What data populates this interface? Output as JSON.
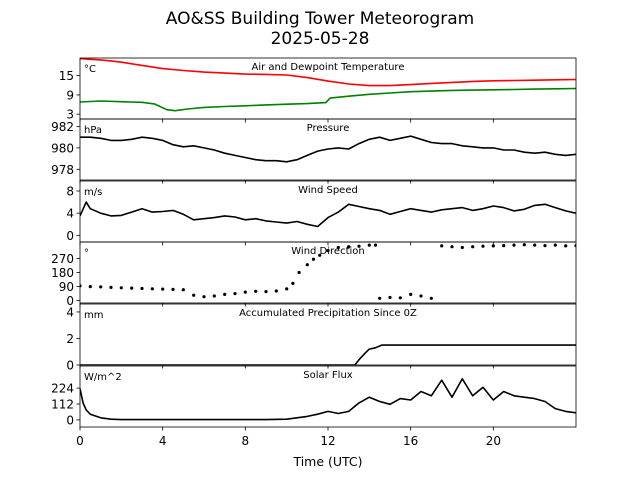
{
  "figure": {
    "title_line1": "AO&SS Building Tower Meteorogram",
    "title_line2": "2025-05-28",
    "xlabel": "Time (UTC)"
  },
  "chart_data": [
    {
      "type": "line",
      "title": "Air and Dewpoint Temperature",
      "unit": "°C",
      "xlim": [
        0,
        24
      ],
      "ylim": [
        1.5,
        20.5
      ],
      "yticks": [
        3,
        9,
        15
      ],
      "series": [
        {
          "color": "#ff0000",
          "x": [
            0,
            0.5,
            1,
            1.5,
            2,
            3,
            4,
            5,
            6,
            7,
            8,
            9,
            10,
            11,
            12,
            13,
            14,
            15,
            16,
            17,
            18,
            19,
            20,
            21,
            22,
            23,
            24
          ],
          "y": [
            20.3,
            20.1,
            19.9,
            19.6,
            19.2,
            18.2,
            17.2,
            16.6,
            16.1,
            15.8,
            15.5,
            15.4,
            15.2,
            14.4,
            13.3,
            12.4,
            11.9,
            11.9,
            12.2,
            12.6,
            12.9,
            13.2,
            13.4,
            13.5,
            13.6,
            13.7,
            13.8
          ]
        },
        {
          "color": "#008000",
          "x": [
            0,
            1,
            2,
            3,
            3.6,
            4.2,
            4.6,
            5.2,
            6,
            7,
            8,
            9,
            10,
            11,
            11.9,
            12.1,
            13,
            14,
            15,
            16,
            17,
            18,
            19,
            20,
            21,
            22,
            23,
            24
          ],
          "y": [
            6.8,
            7.1,
            6.9,
            6.7,
            6.2,
            4.4,
            4.1,
            4.6,
            5.1,
            5.4,
            5.6,
            5.9,
            6.1,
            6.3,
            6.6,
            8.0,
            8.6,
            9.2,
            9.6,
            10.0,
            10.2,
            10.4,
            10.5,
            10.6,
            10.7,
            10.8,
            10.9,
            11.0
          ]
        }
      ]
    },
    {
      "type": "line",
      "title": "Pressure",
      "unit": "hPa",
      "xlim": [
        0,
        24
      ],
      "ylim": [
        977.0,
        982.7
      ],
      "yticks": [
        978,
        980,
        982
      ],
      "series": [
        {
          "color": "#000000",
          "x": [
            0,
            0.5,
            1,
            1.5,
            2,
            2.5,
            3,
            3.5,
            4,
            4.5,
            5,
            5.5,
            6,
            6.5,
            7,
            7.5,
            8,
            8.5,
            9,
            9.5,
            10,
            10.5,
            11,
            11.5,
            12,
            12.5,
            13,
            13.5,
            14,
            14.5,
            15,
            15.5,
            16,
            16.5,
            17,
            17.5,
            18,
            18.5,
            19,
            19.5,
            20,
            20.5,
            21,
            21.5,
            22,
            22.5,
            23,
            23.5,
            24
          ],
          "y": [
            981.0,
            981.0,
            980.9,
            980.7,
            980.7,
            980.8,
            981.0,
            980.9,
            980.7,
            980.3,
            980.1,
            980.2,
            980.0,
            979.8,
            979.5,
            979.3,
            979.1,
            978.9,
            978.8,
            978.8,
            978.7,
            978.9,
            979.3,
            979.7,
            979.9,
            980.0,
            979.9,
            980.4,
            980.8,
            981.0,
            980.7,
            980.9,
            981.1,
            980.8,
            980.5,
            980.4,
            980.4,
            980.2,
            980.1,
            980.0,
            980.0,
            979.8,
            979.8,
            979.6,
            979.5,
            979.6,
            979.4,
            979.3,
            979.4
          ]
        }
      ]
    },
    {
      "type": "line",
      "title": "Wind Speed",
      "unit": "m/s",
      "xlim": [
        0,
        24
      ],
      "ylim": [
        -1.2,
        9.8
      ],
      "yticks": [
        0,
        4,
        8
      ],
      "series": [
        {
          "color": "#000000",
          "x": [
            0,
            0.3,
            0.5,
            1,
            1.5,
            2,
            2.5,
            3,
            3.5,
            4,
            4.5,
            5,
            5.5,
            6,
            6.5,
            7,
            7.5,
            8,
            8.5,
            9,
            9.5,
            10,
            10.5,
            11,
            11.5,
            12,
            12.5,
            13,
            13.5,
            14,
            14.5,
            15,
            15.5,
            16,
            16.5,
            17,
            17.5,
            18,
            18.5,
            19,
            19.5,
            20,
            20.5,
            21,
            21.5,
            22,
            22.5,
            23,
            23.5,
            24
          ],
          "y": [
            3.5,
            6.0,
            4.8,
            4.0,
            3.5,
            3.6,
            4.2,
            4.8,
            4.2,
            4.3,
            4.5,
            3.8,
            2.8,
            3.0,
            3.2,
            3.5,
            3.3,
            2.8,
            3.0,
            2.6,
            2.4,
            2.2,
            2.5,
            2.0,
            1.6,
            3.2,
            4.2,
            5.6,
            5.2,
            4.8,
            4.5,
            3.8,
            4.3,
            4.8,
            4.5,
            4.2,
            4.6,
            4.8,
            5.0,
            4.5,
            4.8,
            5.3,
            5.0,
            4.4,
            4.7,
            5.4,
            5.6,
            5.0,
            4.4,
            4.0
          ]
        }
      ]
    },
    {
      "type": "scatter",
      "title": "Wind Direction",
      "unit": "°",
      "xlim": [
        0,
        24
      ],
      "ylim": [
        -15,
        375
      ],
      "yticks": [
        0,
        90,
        180,
        270
      ],
      "series": [
        {
          "color": "#000000",
          "x": [
            0,
            0.5,
            1,
            1.5,
            2,
            2.5,
            3,
            3.5,
            4,
            4.5,
            5,
            5.5,
            6,
            6.5,
            7,
            7.5,
            8,
            8.5,
            9,
            9.5,
            10,
            10.3,
            10.6,
            11,
            11.3,
            11.6,
            12,
            12.5,
            13,
            13.5,
            14,
            14.3,
            14.5,
            15,
            15.5,
            16,
            16.5,
            17,
            17.5,
            18,
            18.5,
            19,
            19.5,
            20,
            20.5,
            21,
            21.5,
            22,
            22.5,
            23,
            23.5,
            24
          ],
          "y": [
            95,
            90,
            88,
            85,
            82,
            80,
            78,
            76,
            74,
            72,
            70,
            35,
            25,
            30,
            40,
            45,
            55,
            60,
            58,
            62,
            75,
            110,
            180,
            230,
            265,
            290,
            320,
            340,
            345,
            348,
            355,
            355,
            15,
            20,
            18,
            40,
            30,
            15,
            350,
            345,
            340,
            345,
            348,
            350,
            352,
            355,
            358,
            355,
            352,
            355,
            350,
            352
          ]
        }
      ]
    },
    {
      "type": "line",
      "title": "Accumulated Precipitation Since 0Z",
      "unit": "mm",
      "xlim": [
        0,
        24
      ],
      "ylim": [
        0,
        4.6
      ],
      "yticks": [
        0,
        2,
        4
      ],
      "series": [
        {
          "color": "#000000",
          "x": [
            0,
            13.3,
            13.5,
            13.8,
            14.0,
            14.3,
            14.6,
            24
          ],
          "y": [
            0,
            0,
            0.4,
            0.9,
            1.2,
            1.3,
            1.5,
            1.5
          ]
        }
      ]
    },
    {
      "type": "line",
      "title": "Solar Flux",
      "unit": "W/m^2",
      "xlim": [
        0,
        24
      ],
      "ylim": [
        -50,
        380
      ],
      "yticks": [
        0,
        112,
        224
      ],
      "series": [
        {
          "color": "#000000",
          "x": [
            0,
            0.15,
            0.3,
            0.5,
            1,
            1.5,
            2,
            3,
            4,
            5,
            6,
            7,
            8,
            9,
            10,
            10.5,
            11,
            11.5,
            12,
            12.5,
            13,
            13.5,
            14,
            14.5,
            15,
            15.5,
            16,
            16.5,
            17,
            17.5,
            18,
            18.5,
            19,
            19.5,
            20,
            20.5,
            21,
            21.5,
            22,
            22.5,
            23,
            23.5,
            24
          ],
          "y": [
            220,
            120,
            70,
            40,
            15,
            5,
            2,
            2,
            2,
            2,
            2,
            2,
            2,
            2,
            5,
            15,
            25,
            40,
            60,
            45,
            60,
            120,
            160,
            130,
            110,
            150,
            140,
            200,
            170,
            280,
            160,
            290,
            170,
            230,
            140,
            200,
            170,
            160,
            150,
            130,
            80,
            60,
            50
          ]
        }
      ]
    }
  ]
}
